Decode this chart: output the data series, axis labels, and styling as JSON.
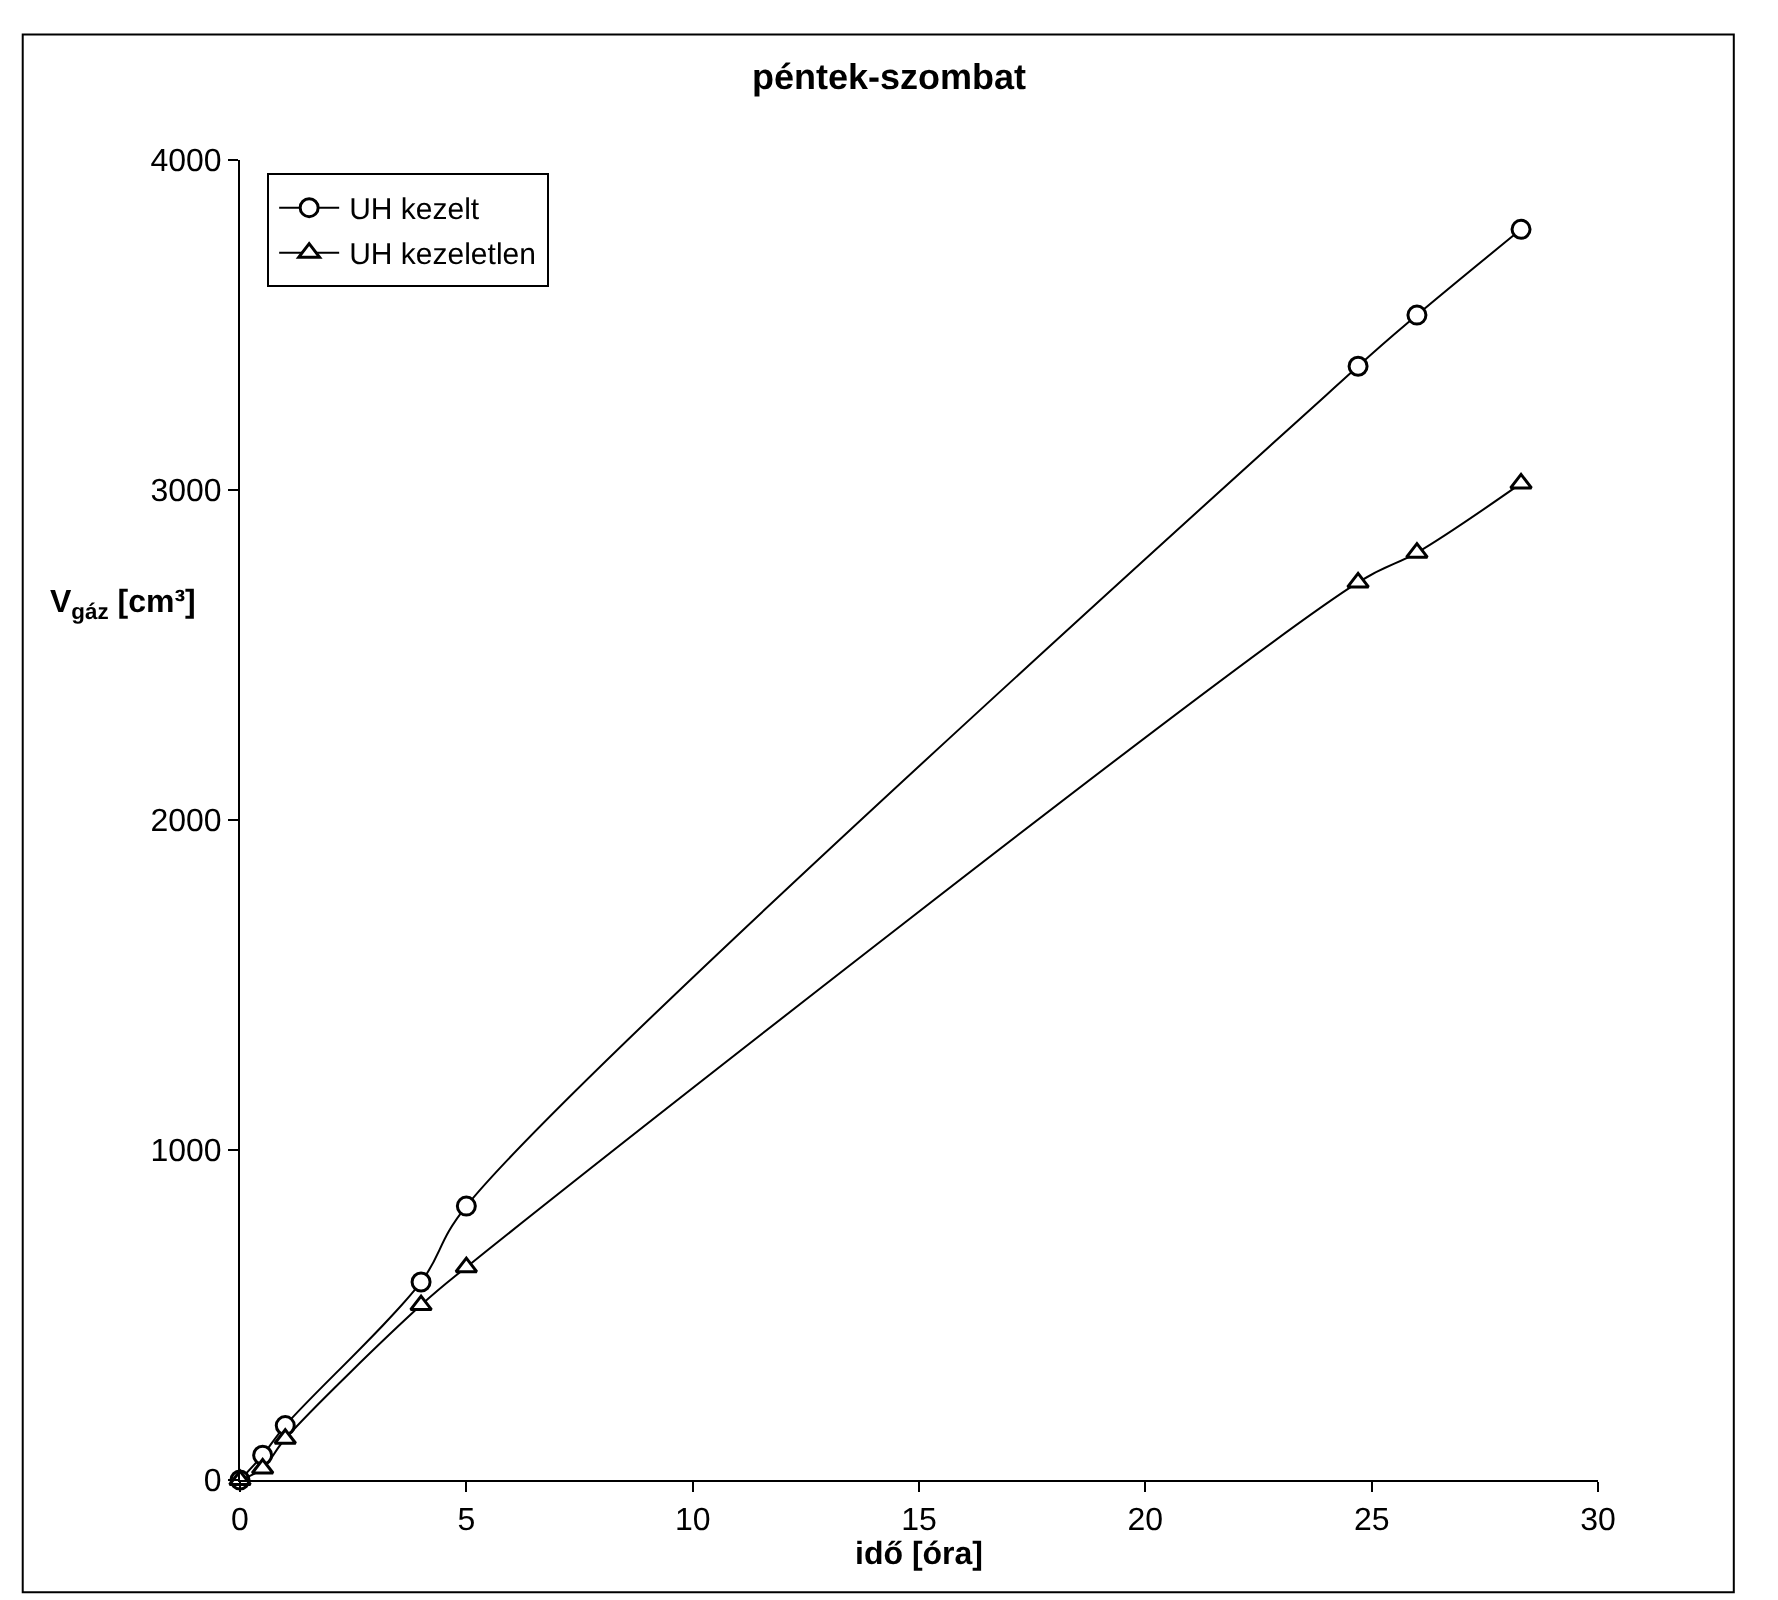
{
  "chart_data": {
    "type": "line",
    "line_style": "solid",
    "title": "péntek-szombat",
    "xlabel": "idő [óra]",
    "ylabel": "V$_{gáz}$ [cm³]",
    "xlim": [
      0,
      30
    ],
    "xticks": [
      0,
      5,
      10,
      15,
      20,
      25,
      30
    ],
    "ylim": [
      0,
      4000
    ],
    "yticks": [
      0,
      1000,
      2000,
      3000,
      4000
    ],
    "grid": false,
    "legend": "top left",
    "series": [
      {
        "name": "UH kezelt",
        "marker": "circle",
        "color": "#000000",
        "x": [
          0,
          0.5,
          1,
          4,
          5,
          24.7,
          26,
          28.3
        ],
        "values": [
          0,
          75,
          165,
          600,
          830,
          3375,
          3530,
          3790
        ]
      },
      {
        "name": "UH kezeletlen",
        "marker": "triangle",
        "color": "#000000",
        "x": [
          0,
          0.5,
          1,
          4,
          5,
          24.7,
          26,
          28.3
        ],
        "values": [
          0,
          35,
          125,
          530,
          645,
          2720,
          2810,
          3020
        ]
      }
    ]
  }
}
